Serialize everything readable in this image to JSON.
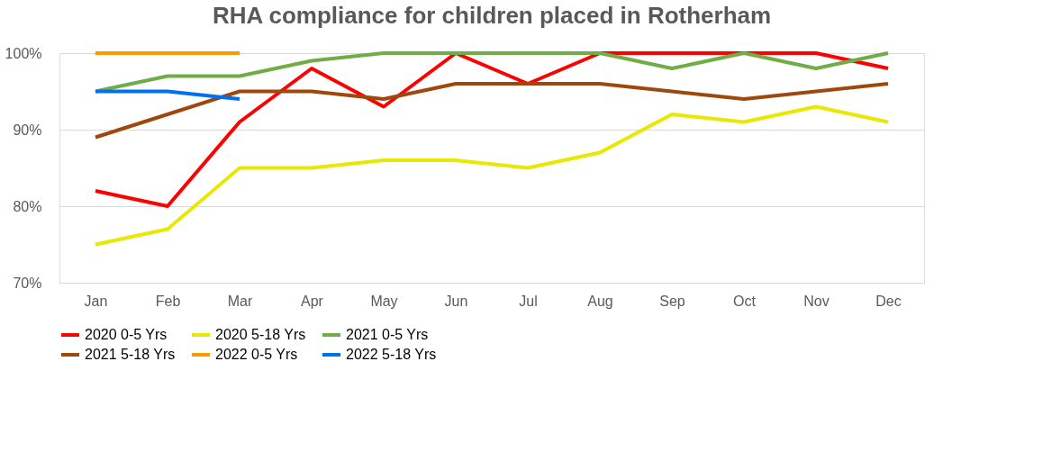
{
  "chart_data": {
    "type": "line",
    "title": "RHA compliance for children placed in Rotherham",
    "categories": [
      "Jan",
      "Feb",
      "Mar",
      "Apr",
      "May",
      "Jun",
      "Jul",
      "Aug",
      "Sep",
      "Oct",
      "Nov",
      "Dec"
    ],
    "series": [
      {
        "name": "2020 0-5 Yrs",
        "color": "#ff0000",
        "values": [
          82,
          80,
          91,
          98,
          93,
          100,
          96,
          100,
          100,
          100,
          100,
          98
        ]
      },
      {
        "name": "2020 5-18 Yrs",
        "color": "#e8e800",
        "values": [
          75,
          77,
          85,
          85,
          86,
          86,
          85,
          87,
          92,
          91,
          93,
          91
        ]
      },
      {
        "name": "2021 0-5 Yrs",
        "color": "#70ad47",
        "values": [
          95,
          97,
          97,
          99,
          100,
          100,
          100,
          100,
          98,
          100,
          98,
          100
        ]
      },
      {
        "name": "2021 5-18 Yrs",
        "color": "#9e480e",
        "values": [
          89,
          92,
          95,
          95,
          94,
          96,
          96,
          96,
          95,
          94,
          95,
          96
        ]
      },
      {
        "name": "2022 0-5 Yrs",
        "color": "#ff9900",
        "values": [
          100,
          100,
          100,
          null,
          null,
          null,
          null,
          null,
          null,
          null,
          null,
          null
        ]
      },
      {
        "name": "2022 5-18 Yrs",
        "color": "#0070f0",
        "values": [
          95,
          95,
          94,
          null,
          null,
          null,
          null,
          null,
          null,
          null,
          null,
          null
        ]
      }
    ],
    "ylim": [
      70,
      100
    ],
    "yticks": [
      {
        "value": 70,
        "label": "70%"
      },
      {
        "value": 80,
        "label": "80%"
      },
      {
        "value": 90,
        "label": "90%"
      },
      {
        "value": 100,
        "label": "100%"
      }
    ],
    "grid": "y",
    "legend": "bottom",
    "marker": "none",
    "line_style": "solid"
  }
}
